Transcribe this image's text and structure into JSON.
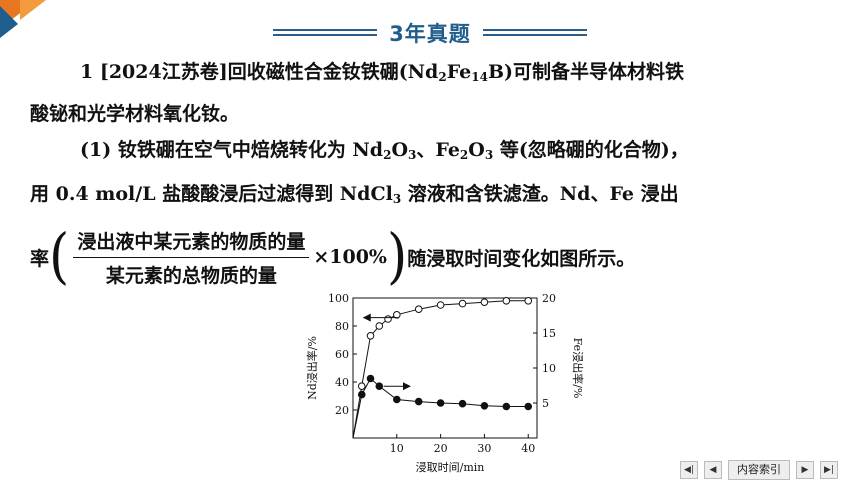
{
  "header": {
    "title": "3年真题"
  },
  "problem": {
    "intro_pre": "1 [2024江苏卷]回收磁性合金钕铁硼(Nd",
    "sub_nd": "2",
    "fe": "Fe",
    "sub_fe": "14",
    "intro_post": "B)可制备半导体材料铁",
    "line2": "酸铋和光学材料氧化钕。",
    "q1_a": "(1)  钕铁硼在空气中焙烧转化为 Nd",
    "q1_sub1": "2",
    "q1_b": "O",
    "q1_sub2": "3",
    "q1_c": "、Fe",
    "q1_sub3": "2",
    "q1_d": "O",
    "q1_sub4": "3",
    "q1_e": " 等(忽略硼的化合物)，",
    "line4_a": "用 0.4  mol/L 盐酸酸浸后过滤得到 NdCl",
    "line4_sub": "3",
    "line4_b": " 溶液和含铁滤渣。Nd、Fe 浸出",
    "rate_prefix": "率",
    "frac_num": "浸出液中某元素的物质的量",
    "frac_den": "某元素的总物质的量",
    "times": "×100%",
    "rate_suffix": "随浸取时间变化如图所示。"
  },
  "chart_data": {
    "type": "line",
    "xlabel": "浸取时间/min",
    "ylabel_left": "Nd浸出率/%",
    "ylabel_right": "Fe浸出率/%",
    "xlim": [
      0,
      42
    ],
    "ylim_left": [
      0,
      100
    ],
    "ylim_right": [
      0,
      20
    ],
    "x_ticks": [
      10,
      20,
      30,
      40
    ],
    "y_left_ticks": [
      20,
      40,
      60,
      80,
      100
    ],
    "y_right_ticks": [
      5,
      10,
      15,
      20
    ],
    "series": [
      {
        "axis": "left",
        "marker": "open-circle",
        "x": [
          0,
          2,
          4,
          6,
          8,
          10,
          15,
          20,
          25,
          30,
          35,
          40
        ],
        "y": [
          0,
          37,
          73,
          80,
          85,
          88,
          92,
          95,
          96,
          97,
          98,
          98
        ]
      },
      {
        "axis": "right",
        "marker": "filled-circle",
        "x": [
          0,
          2,
          4,
          6,
          10,
          15,
          20,
          25,
          30,
          35,
          40
        ],
        "y": [
          0,
          6.2,
          8.5,
          7.4,
          5.5,
          5.2,
          5.0,
          4.9,
          4.6,
          4.5,
          4.5
        ]
      }
    ]
  },
  "nav": {
    "index_label": "内容索引"
  }
}
